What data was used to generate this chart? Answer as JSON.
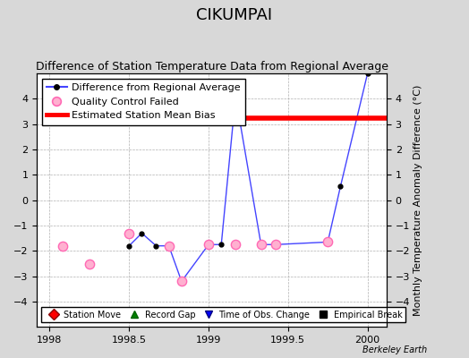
{
  "title": "CIKUMPAI",
  "subtitle": "Difference of Station Temperature Data from Regional Average",
  "ylabel": "Monthly Temperature Anomaly Difference (°C)",
  "xlabel_bottom": "Berkeley Earth",
  "xlim": [
    1997.92,
    2000.12
  ],
  "ylim": [
    -5,
    5
  ],
  "yticks": [
    -4,
    -3,
    -2,
    -1,
    0,
    1,
    2,
    3,
    4
  ],
  "xticks": [
    1998,
    1998.5,
    1999,
    1999.5,
    2000
  ],
  "xtick_labels": [
    "1998",
    "1998.5",
    "1999",
    "1999.5",
    "2000"
  ],
  "bias_value": 3.25,
  "bias_x_start": 1998.92,
  "bias_x_end": 2000.12,
  "main_line_x": [
    1998.5,
    1998.58,
    1998.67,
    1998.75,
    1998.83,
    1999.0,
    1999.08,
    1999.17,
    1999.33,
    1999.42,
    1999.75,
    1999.83,
    2000.0
  ],
  "main_line_y": [
    -1.8,
    -1.3,
    -1.8,
    -1.8,
    -3.2,
    -1.75,
    -1.75,
    4.1,
    -1.75,
    -1.75,
    -1.65,
    0.55,
    5.0
  ],
  "qc_failed_x": [
    1998.08,
    1998.25,
    1998.5,
    1998.75,
    1998.83,
    1999.0,
    1999.17,
    1999.33,
    1999.42,
    1999.75
  ],
  "qc_failed_y": [
    -1.8,
    -2.5,
    -1.3,
    -1.8,
    -3.2,
    -1.75,
    -1.75,
    -1.75,
    -1.75,
    -1.65
  ],
  "line_color": "#4444ff",
  "line_width": 1.0,
  "marker_color": "black",
  "marker_size": 3.5,
  "qc_facecolor": "#ffb0d0",
  "qc_edgecolor": "#ff69b4",
  "bias_color": "red",
  "bias_linewidth": 4.0,
  "background_color": "#d8d8d8",
  "plot_bg_color": "white",
  "grid_color": "#b0b0b0",
  "title_fontsize": 13,
  "subtitle_fontsize": 9,
  "legend_fontsize": 8,
  "axis_fontsize": 8,
  "tick_fontsize": 8
}
